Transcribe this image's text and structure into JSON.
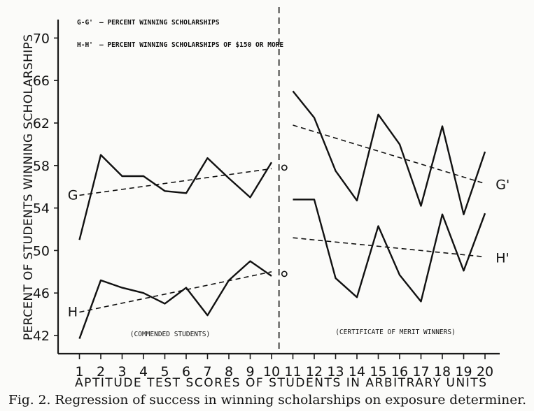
{
  "chart_data": {
    "type": "line",
    "ylabel": "PERCENT OF STUDENTS WINNING SCHOLARSHIPS",
    "xlabel": "APTITUDE TEST SCORES OF STUDENTS IN ARBITRARY UNITS",
    "x": [
      1,
      2,
      3,
      4,
      5,
      6,
      7,
      8,
      9,
      10,
      11,
      12,
      13,
      14,
      15,
      16,
      17,
      18,
      19,
      20
    ],
    "ylim": [
      41,
      71
    ],
    "xlim": [
      0,
      20.6
    ],
    "y_ticks": [
      42,
      46,
      50,
      54,
      58,
      62,
      66,
      70
    ],
    "y_tick_labels": [
      "42",
      "46",
      "50",
      "54",
      "58",
      "62",
      "66",
      "70"
    ],
    "x_tick_labels": [
      "1",
      "2",
      "3",
      "4",
      "5",
      "6",
      "7",
      "8",
      "9",
      "10",
      "11",
      "12",
      "13",
      "14",
      "15",
      "16",
      "17",
      "18",
      "19",
      "20"
    ],
    "grid": false,
    "legend": [
      {
        "key": "G-G'",
        "text": "— PERCENT WINNING SCHOLARSHIPS"
      },
      {
        "key": "H-H'",
        "text": "— PERCENT WINNING SCHOLARSHIPS OF $150 OR MORE"
      }
    ],
    "legend_position": "top-left",
    "series": [
      {
        "name": "G",
        "style": "solid",
        "x": [
          1,
          2,
          3,
          4,
          5,
          6,
          7,
          8,
          9,
          10
        ],
        "values": [
          51.0,
          59.0,
          57.0,
          57.0,
          55.6,
          55.4,
          58.7,
          56.8,
          55.0,
          58.3
        ]
      },
      {
        "name": "G'",
        "style": "solid",
        "x": [
          11,
          12,
          13,
          14,
          15,
          16,
          17,
          18,
          19,
          20
        ],
        "values": [
          65.0,
          62.5,
          57.5,
          54.7,
          62.8,
          60.0,
          54.2,
          61.7,
          53.4,
          59.3
        ]
      },
      {
        "name": "H",
        "style": "solid",
        "x": [
          1,
          2,
          3,
          4,
          5,
          6,
          7,
          8,
          9,
          10
        ],
        "values": [
          41.7,
          47.2,
          46.5,
          46.0,
          45.0,
          46.5,
          43.9,
          47.2,
          49.0,
          47.6
        ]
      },
      {
        "name": "H'",
        "style": "solid",
        "x": [
          11,
          12,
          13,
          14,
          15,
          16,
          17,
          18,
          19,
          20
        ],
        "values": [
          54.8,
          54.8,
          47.4,
          45.6,
          52.3,
          47.7,
          45.2,
          53.4,
          48.1,
          53.5
        ]
      }
    ],
    "regression_lines": [
      {
        "series": "G",
        "x": [
          1,
          10
        ],
        "values": [
          55.2,
          57.7
        ]
      },
      {
        "series": "G'",
        "x": [
          11,
          20
        ],
        "values": [
          61.8,
          56.3
        ]
      },
      {
        "series": "H",
        "x": [
          1,
          10
        ],
        "values": [
          44.2,
          48.0
        ]
      },
      {
        "series": "H'",
        "x": [
          11,
          20
        ],
        "values": [
          51.2,
          49.4
        ]
      }
    ],
    "markers": [
      {
        "x": 10.6,
        "value": 57.8
      },
      {
        "x": 10.6,
        "value": 47.8
      }
    ],
    "divider_x": 10.35,
    "annotations": [
      "(COMMENDED STUDENTS)",
      "(CERTIFICATE OF MERIT WINNERS)"
    ],
    "caption": "Fig. 2. Regression of success in winning scholarships on exposure determiner."
  }
}
